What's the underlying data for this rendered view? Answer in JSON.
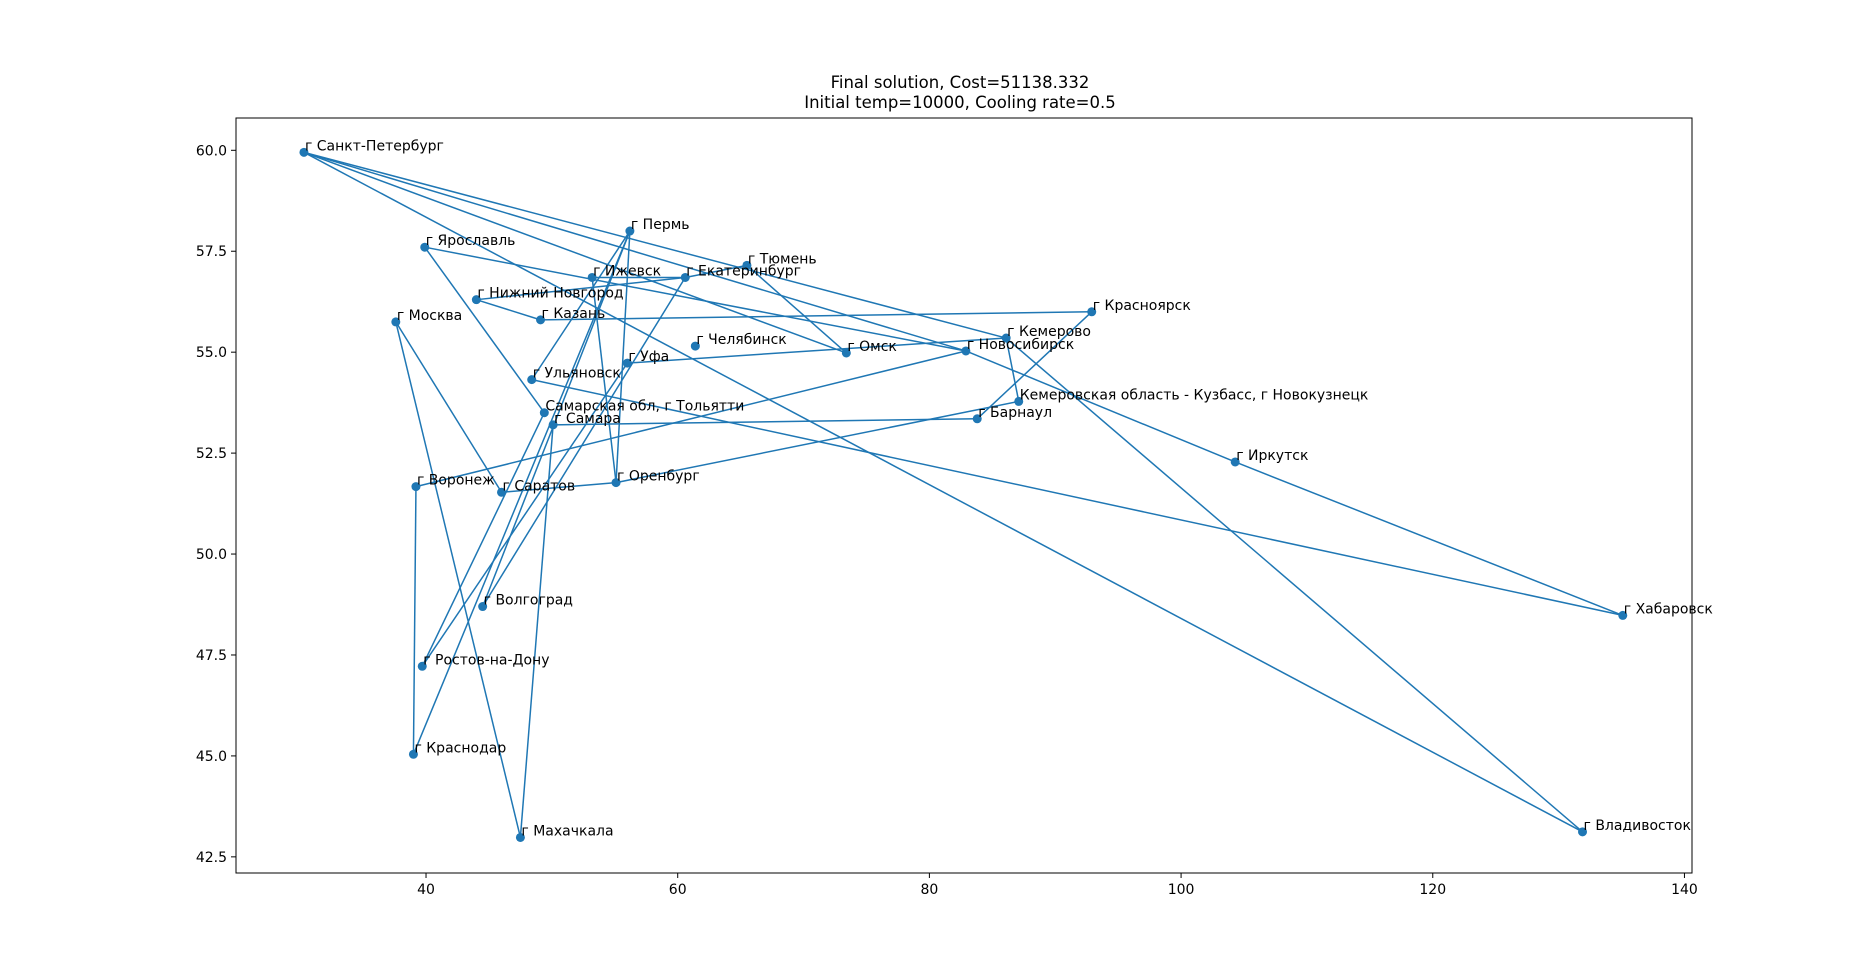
{
  "chart_data": {
    "type": "scatter",
    "title": "Final solution, Cost=51138.332",
    "subtitle": "Initial temp=10000, Cooling rate=0.5",
    "xlabel": "",
    "ylabel": "",
    "xlim": [
      24.9,
      140.6
    ],
    "ylim": [
      42.1,
      60.8
    ],
    "x_ticks": [
      40,
      60,
      80,
      100,
      120,
      140
    ],
    "y_ticks": [
      42.5,
      45.0,
      47.5,
      50.0,
      52.5,
      55.0,
      57.5,
      60.0
    ],
    "x_tick_labels": [
      "40",
      "60",
      "80",
      "100",
      "120",
      "140"
    ],
    "y_tick_labels": [
      "42.5",
      "45.0",
      "47.5",
      "50.0",
      "52.5",
      "55.0",
      "57.5",
      "60.0"
    ],
    "grid": false,
    "series_color": "#1f77b4",
    "points": [
      {
        "label": "г Санкт-Петербург",
        "x": 30.3,
        "y": 59.95
      },
      {
        "label": "г Ярославль",
        "x": 39.9,
        "y": 57.6
      },
      {
        "label": "г Пермь",
        "x": 56.2,
        "y": 58.0
      },
      {
        "label": "г Тюмень",
        "x": 65.5,
        "y": 57.15
      },
      {
        "label": "г Ижевск",
        "x": 53.2,
        "y": 56.85
      },
      {
        "label": "г Екатеринбург",
        "x": 60.6,
        "y": 56.85
      },
      {
        "label": "г Нижний Новгород",
        "x": 44.0,
        "y": 56.3
      },
      {
        "label": "г Казань",
        "x": 49.1,
        "y": 55.8
      },
      {
        "label": "г Москва",
        "x": 37.6,
        "y": 55.75
      },
      {
        "label": "г Красноярск",
        "x": 92.9,
        "y": 56.0
      },
      {
        "label": "г Кемерово",
        "x": 86.1,
        "y": 55.35
      },
      {
        "label": "г Челябинск",
        "x": 61.4,
        "y": 55.15
      },
      {
        "label": "г Омск",
        "x": 73.4,
        "y": 54.98
      },
      {
        "label": "г Новосибирск",
        "x": 82.9,
        "y": 55.03
      },
      {
        "label": "г Уфа",
        "x": 56.0,
        "y": 54.73
      },
      {
        "label": "г Ульяновск",
        "x": 48.4,
        "y": 54.32
      },
      {
        "label": "Кемеровская область - Кузбасс, г Новокузнецк",
        "x": 87.1,
        "y": 53.78
      },
      {
        "label": "Самарская обл, г Тольятти",
        "x": 49.4,
        "y": 53.5
      },
      {
        "label": "г Самара",
        "x": 50.1,
        "y": 53.2
      },
      {
        "label": "г Барнаул",
        "x": 83.8,
        "y": 53.35
      },
      {
        "label": "г Иркутск",
        "x": 104.3,
        "y": 52.28
      },
      {
        "label": "г Оренбург",
        "x": 55.1,
        "y": 51.77
      },
      {
        "label": "г Воронеж",
        "x": 39.2,
        "y": 51.67
      },
      {
        "label": "г Саратов",
        "x": 46.0,
        "y": 51.53
      },
      {
        "label": "г Волгоград",
        "x": 44.5,
        "y": 48.7
      },
      {
        "label": "г Хабаровск",
        "x": 135.1,
        "y": 48.48
      },
      {
        "label": "г Ростов-на-Дону",
        "x": 39.7,
        "y": 47.22
      },
      {
        "label": "г Краснодар",
        "x": 39.0,
        "y": 45.04
      },
      {
        "label": "г Махачкала",
        "x": 47.5,
        "y": 42.98
      },
      {
        "label": "г Владивосток",
        "x": 131.9,
        "y": 43.12
      }
    ],
    "route": [
      "г Санкт-Петербург",
      "г Новосибирск",
      "г Иркутск",
      "г Хабаровск",
      "г Ульяновск",
      "г Пермь",
      "г Волгоград",
      "г Екатеринбург",
      "г Ижевск",
      "г Оренбург",
      "г Пермь",
      "г Краснодар",
      "г Воронеж",
      "г Новосибирск",
      "г Ярославль",
      "Самарская обл, г Тольятти",
      "г Ростов-на-Дону",
      "г Уфа",
      "г Кемерово",
      "г Владивосток",
      "г Санкт-Петербург",
      "г Омск",
      "г Тюмень",
      "г Екатеринбург",
      "г Нижний Новгород",
      "г Казань",
      "г Красноярск",
      "г Барнаул",
      "г Самара",
      "г Махачкала",
      "г Москва",
      "г Саратов",
      "г Оренбург",
      "Кемеровская область - Кузбасс, г Новокузнецк",
      "г Кемерово",
      "г Санкт-Петербург"
    ]
  }
}
